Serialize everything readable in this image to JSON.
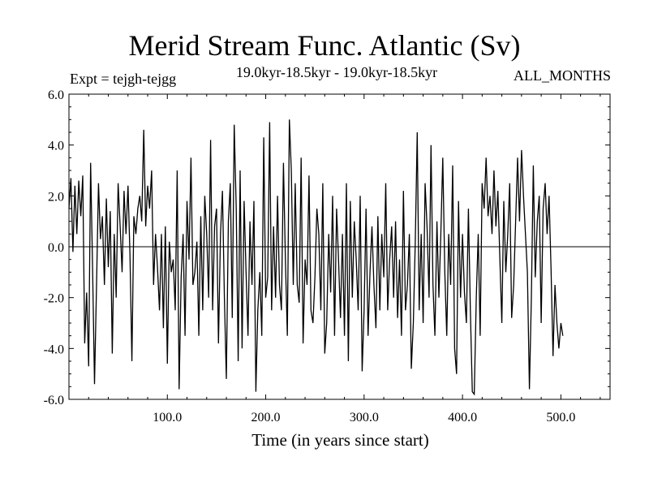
{
  "chart_data": {
    "type": "line",
    "title": "Merid Stream Func. Atlantic (Sv)",
    "subtitle": "19.0kyr-18.5kyr - 19.0kyr-18.5kyr",
    "expt_label": "Expt = tejgh-tejgg",
    "period_label": "ALL_MONTHS",
    "xlabel": "Time (in years since start)",
    "ylabel": "",
    "xlim": [
      0,
      550
    ],
    "ylim": [
      -6,
      6
    ],
    "xticks": [
      100,
      200,
      300,
      400,
      500
    ],
    "xtick_labels": [
      "100.0",
      "200.0",
      "300.0",
      "400.0",
      "500.0"
    ],
    "yticks": [
      -6,
      -4,
      -2,
      0,
      2,
      4,
      6
    ],
    "ytick_labels": [
      "-6.0",
      "-4.0",
      "-2.0",
      "0.0",
      "2.0",
      "4.0",
      "6.0"
    ],
    "zero_line": true,
    "grid": false,
    "series": [
      {
        "name": "",
        "x_start": 0,
        "x_step": 2,
        "values": [
          1.5,
          2.7,
          -0.2,
          2.4,
          0.5,
          2.6,
          1.2,
          2.8,
          -3.8,
          -1.8,
          -4.7,
          3.3,
          -0.8,
          -5.4,
          -1.5,
          2.5,
          0.3,
          1.2,
          -1.5,
          1.9,
          -0.8,
          1.4,
          -4.2,
          0.5,
          -2.0,
          2.5,
          0.8,
          -1.0,
          2.2,
          0.5,
          2.4,
          -0.3,
          -4.5,
          1.2,
          0.5,
          1.5,
          2.0,
          1.0,
          4.6,
          0.8,
          2.4,
          1.5,
          3.0,
          -1.5,
          0.5,
          -0.8,
          -2.5,
          0.5,
          -3.2,
          0.8,
          -4.6,
          0.2,
          -1.0,
          -0.5,
          -2.5,
          3.0,
          -5.6,
          -1.2,
          0.5,
          -3.5,
          1.8,
          -0.5,
          3.5,
          -1.5,
          -1.0,
          0.2,
          -3.5,
          1.2,
          -2.5,
          2.0,
          0.5,
          -2.0,
          4.2,
          -2.5,
          0.8,
          1.5,
          -3.8,
          0.5,
          2.2,
          -2.0,
          -5.2,
          1.0,
          2.5,
          -2.8,
          4.8,
          1.5,
          -4.5,
          3.0,
          -4.0,
          1.8,
          -1.0,
          -3.5,
          1.0,
          -1.5,
          1.8,
          -5.7,
          -2.5,
          -1.0,
          -3.5,
          4.3,
          -2.0,
          -1.2,
          4.9,
          -2.5,
          0.8,
          -2.0,
          2.0,
          -1.5,
          -2.5,
          3.3,
          -0.5,
          -3.5,
          5.0,
          3.0,
          -1.5,
          2.5,
          -1.5,
          -2.2,
          3.5,
          -3.8,
          -0.5,
          -1.5,
          2.8,
          -2.5,
          -3.0,
          -1.2,
          1.5,
          0.5,
          -2.5,
          2.5,
          -4.2,
          -3.0,
          0.5,
          -1.8,
          2.0,
          -3.5,
          1.5,
          -0.5,
          -2.8,
          0.5,
          -3.5,
          2.5,
          -4.5,
          1.8,
          -2.0,
          1.0,
          -0.5,
          -2.5,
          2.0,
          -4.9,
          -2.5,
          1.5,
          -3.5,
          -1.0,
          0.8,
          -1.5,
          -3.2,
          1.2,
          -2.5,
          0.5,
          -1.2,
          2.5,
          -2.5,
          -0.5,
          0.8,
          -2.0,
          1.0,
          -2.8,
          -0.5,
          -3.5,
          2.2,
          -2.5,
          -1.5,
          0.5,
          -4.8,
          -3.0,
          0.2,
          4.5,
          -2.5,
          0.5,
          -3.0,
          2.5,
          0.8,
          -2.0,
          4.0,
          -1.5,
          -3.5,
          1.0,
          -2.0,
          0.5,
          3.5,
          -1.0,
          -3.5,
          0.5,
          -1.5,
          3.2,
          -4.0,
          -5.0,
          1.8,
          -2.0,
          0.5,
          -1.8,
          -3.0,
          1.5,
          -2.5,
          -5.7,
          -5.8,
          -2.0,
          0.5,
          -3.5,
          2.5,
          1.5,
          3.5,
          1.2,
          2.0,
          0.5,
          3.0,
          0.8,
          2.2,
          -0.5,
          -3.0,
          1.8,
          -1.0,
          0.5,
          2.5,
          -2.8,
          -1.5,
          1.0,
          3.5,
          1.0,
          3.8,
          2.0,
          0.5,
          -1.0,
          -5.6,
          -2.0,
          3.2,
          -1.2,
          1.0,
          2.0,
          -3.0,
          1.5,
          2.5,
          0.5,
          2.0,
          -0.8,
          -4.3,
          -1.5,
          -3.0,
          -4.0,
          -3.0,
          -3.5
        ]
      }
    ]
  }
}
